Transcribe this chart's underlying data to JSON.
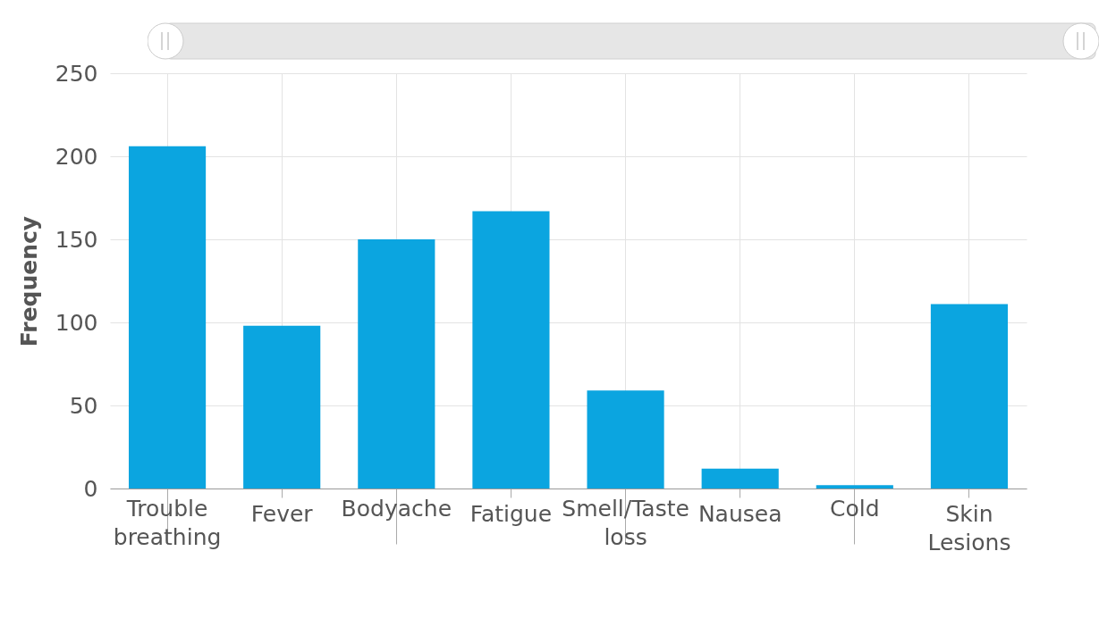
{
  "chart_data": {
    "type": "bar",
    "ylabel": "Frequency",
    "categories": [
      "Trouble breathing",
      "Fever",
      "Bodyache",
      "Fatigue",
      "Smell/Taste loss",
      "Nausea",
      "Cold",
      "Skin Lesions"
    ],
    "values": [
      206,
      98,
      150,
      167,
      59,
      12,
      2,
      111
    ],
    "color": "#0ba5e0",
    "ylim": [
      0,
      250
    ],
    "yticks": [
      0,
      50,
      100,
      150,
      200,
      250
    ],
    "grid": true
  }
}
